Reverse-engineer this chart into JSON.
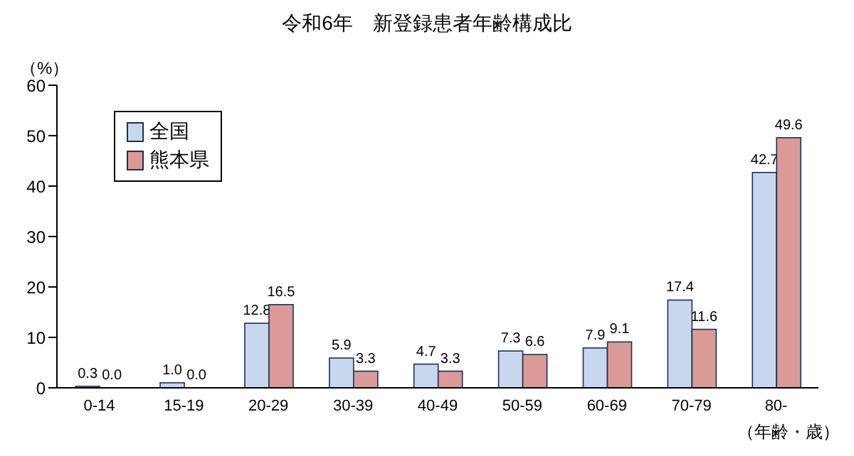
{
  "chart_data": {
    "type": "bar",
    "title": "令和6年　新登録患者年齢構成比",
    "ylabel": "（%）",
    "xlabel": "（年齢・歳）",
    "categories": [
      "0-14",
      "15-19",
      "20-29",
      "30-39",
      "40-49",
      "50-59",
      "60-69",
      "70-79",
      "80-"
    ],
    "series": [
      {
        "name": "全国",
        "color": "#c9d7ee",
        "values": [
          0.3,
          1.0,
          12.8,
          5.9,
          4.7,
          7.3,
          7.9,
          17.4,
          42.7
        ],
        "value_labels": [
          "0.3",
          "1.0",
          "12.8",
          "5.9",
          "4.7",
          "7.3",
          "7.9",
          "17.4",
          "42.7"
        ]
      },
      {
        "name": "熊本県",
        "color": "#d99a98",
        "values": [
          0.0,
          0.0,
          16.5,
          3.3,
          3.3,
          6.6,
          9.1,
          11.6,
          49.6
        ],
        "value_labels": [
          "0.0",
          "0.0",
          "16.5",
          "3.3",
          "3.3",
          "6.6",
          "9.1",
          "11.6",
          "49.6"
        ]
      }
    ],
    "ylim": [
      0,
      60
    ],
    "yticks": [
      0,
      10,
      20,
      30,
      40,
      50,
      60
    ],
    "grid": false,
    "legend": "top left"
  }
}
